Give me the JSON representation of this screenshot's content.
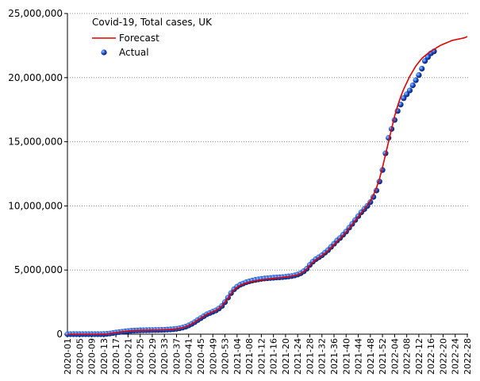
{
  "chart_data": {
    "type": "line",
    "title": "Covid-19, Total cases, UK",
    "categories": [
      "2020-01",
      null,
      null,
      null,
      "2020-05",
      null,
      null,
      null,
      "2020-09",
      null,
      null,
      null,
      "2020-13",
      null,
      null,
      null,
      "2020-17",
      null,
      null,
      null,
      "2020-21",
      null,
      null,
      null,
      "2020-25",
      null,
      null,
      null,
      "2020-29",
      null,
      null,
      null,
      "2020-33",
      null,
      null,
      null,
      "2020-37",
      null,
      null,
      null,
      "2020-41",
      null,
      null,
      null,
      "2020-45",
      null,
      null,
      null,
      "2020-49",
      null,
      null,
      null,
      "2020-53",
      null,
      null,
      null,
      "2021-04",
      null,
      null,
      null,
      "2021-08",
      null,
      null,
      null,
      "2021-12",
      null,
      null,
      null,
      "2021-16",
      null,
      null,
      null,
      "2021-20",
      null,
      null,
      null,
      "2021-24",
      null,
      null,
      null,
      "2021-28",
      null,
      null,
      null,
      "2021-32",
      null,
      null,
      null,
      "2021-36",
      null,
      null,
      null,
      "2021-40",
      null,
      null,
      null,
      "2021-44",
      null,
      null,
      null,
      "2021-48",
      null,
      null,
      null,
      "2021-52",
      null,
      null,
      null,
      "2022-04",
      null,
      null,
      null,
      "2022-08",
      null,
      null,
      null,
      "2022-12",
      null,
      null,
      null,
      "2022-16",
      null,
      null,
      null,
      "2022-20",
      null,
      null,
      null,
      "2022-24",
      null,
      null,
      null,
      "2022-28"
    ],
    "series": [
      {
        "name": "Forecast",
        "kind": "line",
        "color": "#e00000",
        "values": [
          0,
          0,
          0,
          0,
          0,
          0,
          0,
          0,
          0,
          0,
          300,
          1500,
          6000,
          25000,
          50000,
          90000,
          125000,
          160000,
          190000,
          220000,
          245000,
          265000,
          280000,
          290000,
          300000,
          305000,
          310000,
          315000,
          320000,
          325000,
          330000,
          335000,
          345000,
          355000,
          370000,
          390000,
          420000,
          460000,
          510000,
          580000,
          680000,
          800000,
          940000,
          1100000,
          1250000,
          1400000,
          1550000,
          1650000,
          1750000,
          1850000,
          2000000,
          2200000,
          2500000,
          2800000,
          3150000,
          3450000,
          3650000,
          3800000,
          3900000,
          3980000,
          4050000,
          4100000,
          4150000,
          4190000,
          4230000,
          4260000,
          4290000,
          4320000,
          4350000,
          4380000,
          4400000,
          4430000,
          4460000,
          4490000,
          4520000,
          4570000,
          4630000,
          4730000,
          4880000,
          5080000,
          5350000,
          5600000,
          5800000,
          5970000,
          6120000,
          6300000,
          6500000,
          6730000,
          6970000,
          7220000,
          7450000,
          7700000,
          7950000,
          8250000,
          8550000,
          8850000,
          9150000,
          9450000,
          9750000,
          10050000,
          10400000,
          10850000,
          11400000,
          12100000,
          13000000,
          14000000,
          15000000,
          16000000,
          17000000,
          17800000,
          18500000,
          19100000,
          19600000,
          20100000,
          20500000,
          20900000,
          21200000,
          21500000,
          21700000,
          21900000,
          22050000,
          22200000,
          22350000,
          22500000,
          22600000,
          22700000,
          22800000,
          22900000,
          22950000,
          23000000,
          23050000,
          23100000,
          23200000
        ]
      },
      {
        "name": "Actual",
        "kind": "points",
        "color": "#1a4fd0",
        "values": [
          0,
          0,
          0,
          0,
          0,
          0,
          0,
          0,
          0,
          0,
          300,
          1500,
          6000,
          25000,
          50000,
          90000,
          125000,
          160000,
          190000,
          220000,
          245000,
          265000,
          280000,
          290000,
          300000,
          305000,
          310000,
          315000,
          320000,
          325000,
          330000,
          335000,
          345000,
          355000,
          370000,
          390000,
          420000,
          460000,
          510000,
          580000,
          680000,
          800000,
          940000,
          1100000,
          1250000,
          1400000,
          1550000,
          1650000,
          1750000,
          1850000,
          2000000,
          2200000,
          2500000,
          2850000,
          3200000,
          3500000,
          3700000,
          3850000,
          3950000,
          4050000,
          4120000,
          4180000,
          4230000,
          4270000,
          4310000,
          4340000,
          4360000,
          4380000,
          4400000,
          4420000,
          4430000,
          4450000,
          4470000,
          4500000,
          4530000,
          4580000,
          4650000,
          4750000,
          4900000,
          5100000,
          5400000,
          5650000,
          5850000,
          6000000,
          6150000,
          6350000,
          6550000,
          6800000,
          7050000,
          7300000,
          7500000,
          7750000,
          8000000,
          8300000,
          8600000,
          8900000,
          9200000,
          9500000,
          9750000,
          10000000,
          10300000,
          10700000,
          11200000,
          11900000,
          12800000,
          14100000,
          15300000,
          16000000,
          16700000,
          17400000,
          17900000,
          18400000,
          18700000,
          19000000,
          19400000,
          19800000,
          20200000,
          20700000,
          21300000,
          21600000,
          21900000,
          22050000,
          null,
          null,
          null,
          null,
          null,
          null,
          null,
          null,
          null,
          null,
          null
        ]
      }
    ],
    "ylim": [
      0,
      25000000
    ],
    "yticks": [
      0,
      {
        "value": 5000000,
        "label": "5,000,000"
      },
      {
        "value": 10000000,
        "label": "10,000,000"
      },
      {
        "value": 15000000,
        "label": "15,000,000"
      },
      {
        "value": 20000000,
        "label": "20,000,000"
      },
      {
        "value": 25000000,
        "label": "25,000,000"
      }
    ],
    "grid": true,
    "legend": "top-left"
  }
}
